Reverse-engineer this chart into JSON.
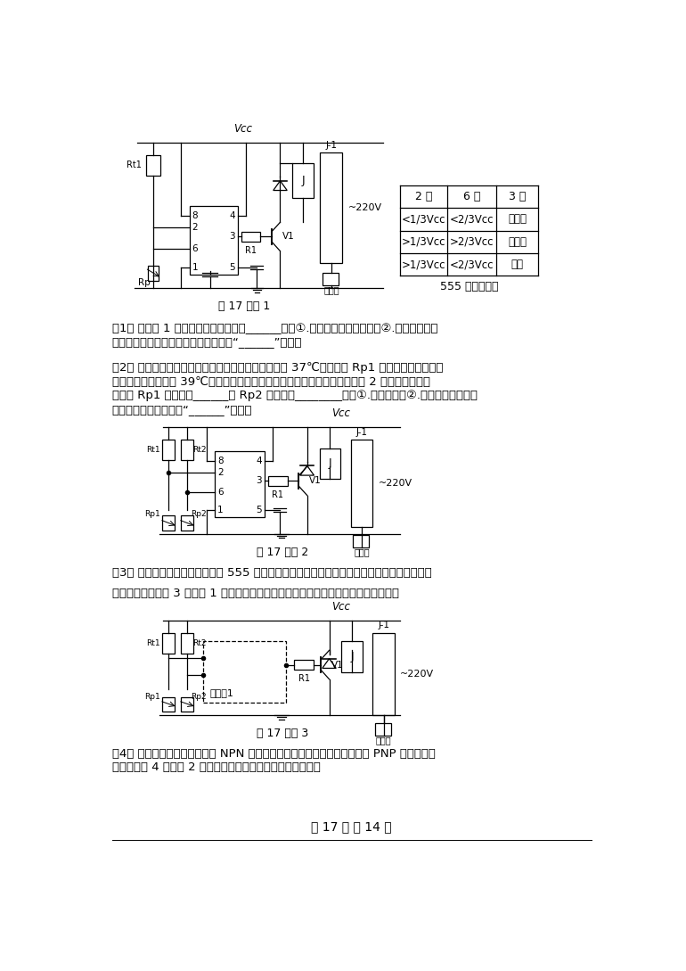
{
  "bg_color": "#ffffff",
  "text_color": "#000000",
  "line_color": "#000000",
  "page_width": 7.7,
  "page_height": 10.89,
  "table_headers": [
    "2 脚",
    "6 脚",
    "3 脚"
  ],
  "table_rows": [
    [
      "<1/3Vcc",
      "<2/3Vcc",
      "高电平"
    ],
    [
      ">1/3Vcc",
      ">2/3Vcc",
      "低电平"
    ],
    [
      ">1/3Vcc",
      "<2/3Vcc",
      "保持"
    ]
  ],
  "table_caption": "555 芯片功能表",
  "diagram1_caption": "第 17 题图 1",
  "diagram2_caption": "第 17 题图 2",
  "diagram3_caption": "第 17 题图 3",
  "footer": "第 17 页 共 14 页",
  "para1_line1": "（1） 电路图 1 中的热敏电阳选用的是______（在①.正温度系数热敏电阳；②.负温度系数热",
  "para1_line2": "敏电阳中选择合适的选项，将序号填入“______”处）；",
  "para2_line1": "（2） 小明在调试电路时发现电路有问题，在下限温度 37℃时调试好 Rp1 的阻值使加热丝开始",
  "para2_line2": "加热，当温度上升至 39℃时，加热丝并没有停止加热。小明重新设计了如图 2 所示的电路，该",
  "para2_line3": "电路中 Rp1 用于调试______； Rp2 用于调试________（在①.上限温度；②.下限温度中选择合",
  "para2_line4": "适的选项，将序号填入“______”处）；",
  "para3_line1": "（3） 该电路使用一段时间后发现 555 集成芯片损坏了，而手头上还有与非门电路的集成芯片，",
  "para3_line2": "请你帮助小明在图 3 虚线框 1 中用最少的与非门完成电路的设计，实现电路的原功能。",
  "para4_line1": "（4） 电路使用一段时间后发现 NPN 三极管损坏了，现在请你用最少个数的 PNP 型三极管和",
  "para4_line2": "电阳器在图 4 虚线框 2 中重新设计电路，实现电路的原功能。"
}
